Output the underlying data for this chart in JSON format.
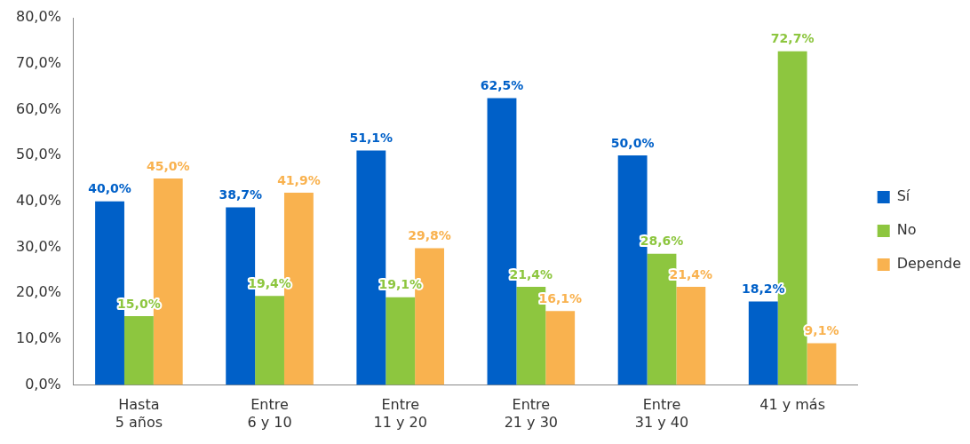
{
  "chart_data": {
    "type": "bar",
    "categories": [
      "Hasta\n5 años",
      "Entre\n6 y 10",
      "Entre\n11 y 20",
      "Entre\n21 y 30",
      "Entre\n31 y 40",
      "41 y más"
    ],
    "series": [
      {
        "name": "Sí",
        "color": "#0060c8",
        "values": [
          40.0,
          38.7,
          51.1,
          62.5,
          50.0,
          18.2
        ],
        "value_labels": [
          "40,0%",
          "38,7%",
          "51,1%",
          "62,5%",
          "50,0%",
          "18,2%"
        ]
      },
      {
        "name": "No",
        "color": "#8dc63f",
        "values": [
          15.0,
          19.4,
          19.1,
          21.4,
          28.6,
          72.7
        ],
        "value_labels": [
          "15,0%",
          "19,4%",
          "19,1%",
          "21,4%",
          "28,6%",
          "72,7%"
        ]
      },
      {
        "name": "Depende",
        "color": "#f9b24f",
        "values": [
          45.0,
          41.9,
          29.8,
          16.1,
          21.4,
          9.1
        ],
        "value_labels": [
          "45,0%",
          "41,9%",
          "29,8%",
          "16,1%",
          "21,4%",
          "9,1%"
        ]
      }
    ],
    "ylim": [
      0,
      80
    ],
    "yticks": [
      {
        "value": 0,
        "label": "0,0%"
      },
      {
        "value": 10,
        "label": "10,0%"
      },
      {
        "value": 20,
        "label": "20,0%"
      },
      {
        "value": 30,
        "label": "30,0%"
      },
      {
        "value": 40,
        "label": "40,0%"
      },
      {
        "value": 50,
        "label": "50,0%"
      },
      {
        "value": 60,
        "label": "60,0%"
      },
      {
        "value": 70,
        "label": "70,0%"
      },
      {
        "value": 80,
        "label": "80,0%"
      }
    ],
    "grid": false,
    "legend": "right"
  }
}
